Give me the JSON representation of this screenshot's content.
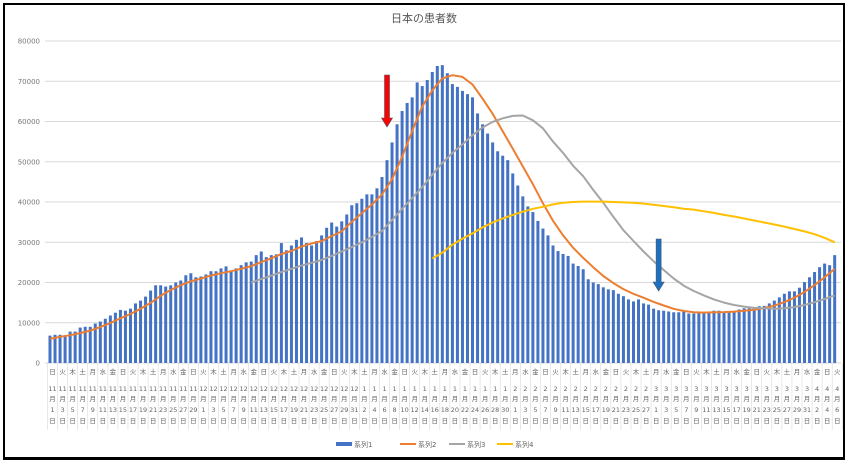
{
  "chart_data": {
    "type": "bar",
    "title": "日本の患者数",
    "ylim": [
      0,
      80000
    ],
    "yticks": [
      "0",
      "10000",
      "20000",
      "30000",
      "40000",
      "50000",
      "60000",
      "70000",
      "80000"
    ],
    "grid": true,
    "legend_placement": "bottom",
    "categories": [
      {
        "weekday": "日",
        "month": "11",
        "day": "1"
      },
      {
        "weekday": "火",
        "month": "11",
        "day": "3"
      },
      {
        "weekday": "木",
        "month": "11",
        "day": "5"
      },
      {
        "weekday": "土",
        "month": "11",
        "day": "7"
      },
      {
        "weekday": "月",
        "month": "11",
        "day": "9"
      },
      {
        "weekday": "水",
        "month": "11",
        "day": "11"
      },
      {
        "weekday": "金",
        "month": "11",
        "day": "13"
      },
      {
        "weekday": "日",
        "month": "11",
        "day": "15"
      },
      {
        "weekday": "火",
        "month": "11",
        "day": "17"
      },
      {
        "weekday": "木",
        "month": "11",
        "day": "19"
      },
      {
        "weekday": "土",
        "month": "11",
        "day": "21"
      },
      {
        "weekday": "月",
        "month": "11",
        "day": "23"
      },
      {
        "weekday": "水",
        "month": "11",
        "day": "25"
      },
      {
        "weekday": "金",
        "month": "11",
        "day": "27"
      },
      {
        "weekday": "日",
        "month": "11",
        "day": "29"
      },
      {
        "weekday": "火",
        "month": "12",
        "day": "1"
      },
      {
        "weekday": "木",
        "month": "12",
        "day": "3"
      },
      {
        "weekday": "土",
        "month": "12",
        "day": "5"
      },
      {
        "weekday": "月",
        "month": "12",
        "day": "7"
      },
      {
        "weekday": "水",
        "month": "12",
        "day": "9"
      },
      {
        "weekday": "金",
        "month": "12",
        "day": "11"
      },
      {
        "weekday": "日",
        "month": "12",
        "day": "13"
      },
      {
        "weekday": "火",
        "month": "12",
        "day": "15"
      },
      {
        "weekday": "木",
        "month": "12",
        "day": "17"
      },
      {
        "weekday": "土",
        "month": "12",
        "day": "19"
      },
      {
        "weekday": "月",
        "month": "12",
        "day": "21"
      },
      {
        "weekday": "水",
        "month": "12",
        "day": "23"
      },
      {
        "weekday": "金",
        "month": "12",
        "day": "25"
      },
      {
        "weekday": "日",
        "month": "12",
        "day": "27"
      },
      {
        "weekday": "火",
        "month": "12",
        "day": "29"
      },
      {
        "weekday": "木",
        "month": "12",
        "day": "31"
      },
      {
        "weekday": "土",
        "month": "1",
        "day": "2"
      },
      {
        "weekday": "月",
        "month": "1",
        "day": "4"
      },
      {
        "weekday": "水",
        "month": "1",
        "day": "6"
      },
      {
        "weekday": "金",
        "month": "1",
        "day": "8"
      },
      {
        "weekday": "日",
        "month": "1",
        "day": "10"
      },
      {
        "weekday": "火",
        "month": "1",
        "day": "12"
      },
      {
        "weekday": "木",
        "month": "1",
        "day": "14"
      },
      {
        "weekday": "土",
        "month": "1",
        "day": "16"
      },
      {
        "weekday": "月",
        "month": "1",
        "day": "18"
      },
      {
        "weekday": "水",
        "month": "1",
        "day": "20"
      },
      {
        "weekday": "金",
        "month": "1",
        "day": "22"
      },
      {
        "weekday": "日",
        "month": "1",
        "day": "24"
      },
      {
        "weekday": "火",
        "month": "1",
        "day": "26"
      },
      {
        "weekday": "木",
        "month": "1",
        "day": "28"
      },
      {
        "weekday": "土",
        "month": "1",
        "day": "30"
      },
      {
        "weekday": "月",
        "month": "2",
        "day": "1"
      },
      {
        "weekday": "水",
        "month": "2",
        "day": "3"
      },
      {
        "weekday": "金",
        "month": "2",
        "day": "5"
      },
      {
        "weekday": "日",
        "month": "2",
        "day": "7"
      },
      {
        "weekday": "火",
        "month": "2",
        "day": "9"
      },
      {
        "weekday": "木",
        "month": "2",
        "day": "11"
      },
      {
        "weekday": "土",
        "month": "2",
        "day": "13"
      },
      {
        "weekday": "月",
        "month": "2",
        "day": "15"
      },
      {
        "weekday": "水",
        "month": "2",
        "day": "17"
      },
      {
        "weekday": "金",
        "month": "2",
        "day": "19"
      },
      {
        "weekday": "日",
        "month": "2",
        "day": "21"
      },
      {
        "weekday": "火",
        "month": "2",
        "day": "23"
      },
      {
        "weekday": "木",
        "month": "2",
        "day": "25"
      },
      {
        "weekday": "土",
        "month": "2",
        "day": "27"
      },
      {
        "weekday": "月",
        "month": "3",
        "day": "1"
      },
      {
        "weekday": "水",
        "month": "3",
        "day": "3"
      },
      {
        "weekday": "金",
        "month": "3",
        "day": "5"
      },
      {
        "weekday": "日",
        "month": "3",
        "day": "7"
      },
      {
        "weekday": "火",
        "month": "3",
        "day": "9"
      },
      {
        "weekday": "木",
        "month": "3",
        "day": "11"
      },
      {
        "weekday": "土",
        "month": "3",
        "day": "13"
      },
      {
        "weekday": "月",
        "month": "3",
        "day": "15"
      },
      {
        "weekday": "水",
        "month": "3",
        "day": "17"
      },
      {
        "weekday": "金",
        "month": "3",
        "day": "19"
      },
      {
        "weekday": "日",
        "month": "3",
        "day": "21"
      },
      {
        "weekday": "火",
        "month": "3",
        "day": "23"
      },
      {
        "weekday": "木",
        "month": "3",
        "day": "25"
      },
      {
        "weekday": "土",
        "month": "3",
        "day": "27"
      },
      {
        "weekday": "月",
        "month": "3",
        "day": "29"
      },
      {
        "weekday": "水",
        "month": "3",
        "day": "31"
      },
      {
        "weekday": "金",
        "month": "4",
        "day": "2"
      },
      {
        "weekday": "日",
        "month": "4",
        "day": "4"
      },
      {
        "weekday": "火",
        "month": "4",
        "day": "6"
      }
    ],
    "month_suffix": "月",
    "day_suffix": "日",
    "bar_series": {
      "name": "系列1",
      "color": "#4472c4",
      "dates": [
        "11月1日",
        "11月2日",
        "11月3日",
        "11月4日",
        "11月5日",
        "11月6日",
        "11月7日",
        "11月8日",
        "11月9日",
        "11月10日",
        "11月11日",
        "11月12日",
        "11月13日",
        "11月14日",
        "11月15日",
        "11月16日",
        "11月17日",
        "11月18日",
        "11月19日",
        "11月20日",
        "11月21日",
        "11月22日",
        "11月23日",
        "11月24日",
        "11月25日",
        "11月26日",
        "11月27日",
        "11月28日",
        "11月29日",
        "11月30日",
        "12月1日",
        "12月2日",
        "12月3日",
        "12月4日",
        "12月5日",
        "12月6日",
        "12月7日",
        "12月8日",
        "12月9日",
        "12月10日",
        "12月11日",
        "12月12日",
        "12月13日",
        "12月14日",
        "12月15日",
        "12月16日",
        "12月17日",
        "12月18日",
        "12月19日",
        "12月20日",
        "12月21日",
        "12月22日",
        "12月23日",
        "12月24日",
        "12月25日",
        "12月26日",
        "12月27日",
        "12月28日",
        "12月29日",
        "12月30日",
        "12月31日",
        "1月1日",
        "1月2日",
        "1月3日",
        "1月4日",
        "1月5日",
        "1月6日",
        "1月7日",
        "1月8日",
        "1月9日",
        "1月10日",
        "1月11日",
        "1月12日",
        "1月13日",
        "1月14日",
        "1月15日",
        "1月16日",
        "1月17日",
        "1月18日",
        "1月19日",
        "1月20日",
        "1月21日",
        "1月22日",
        "1月23日",
        "1月24日",
        "1月25日",
        "1月26日",
        "1月27日",
        "1月28日",
        "1月29日",
        "1月30日",
        "1月31日",
        "2月1日",
        "2月2日",
        "2月3日",
        "2月4日",
        "2月5日",
        "2月6日",
        "2月7日",
        "2月8日",
        "2月9日",
        "2月10日",
        "2月11日",
        "2月12日",
        "2月13日",
        "2月14日",
        "2月15日",
        "2月16日",
        "2月17日",
        "2月18日",
        "2月19日",
        "2月20日",
        "2月21日",
        "2月22日",
        "2月23日",
        "2月24日",
        "2月25日",
        "2月26日",
        "2月27日",
        "2月28日",
        "3月1日",
        "3月2日",
        "3月3日",
        "3月4日",
        "3月5日",
        "3月6日",
        "3月7日",
        "3月8日",
        "3月9日",
        "3月10日",
        "3月11日",
        "3月12日",
        "3月13日",
        "3月14日",
        "3月15日",
        "3月16日",
        "3月17日",
        "3月18日",
        "3月19日",
        "3月20日",
        "3月21日",
        "3月22日",
        "3月23日",
        "3月24日",
        "3月25日",
        "3月26日",
        "3月27日",
        "3月28日",
        "3月29日",
        "3月30日",
        "3月31日",
        "4月1日",
        "4月2日",
        "4月3日",
        "4月4日",
        "4月5日",
        "4月6日"
      ],
      "values": [
        6800,
        7000,
        7000,
        6900,
        7800,
        7800,
        8800,
        9000,
        9000,
        9800,
        10300,
        11000,
        11800,
        12500,
        13200,
        13000,
        13500,
        14800,
        15500,
        16500,
        18000,
        19300,
        19300,
        19000,
        19300,
        20000,
        20500,
        21800,
        22300,
        21300,
        21500,
        22000,
        22800,
        22800,
        23500,
        24000,
        23000,
        23500,
        24300,
        25000,
        25200,
        26800,
        27700,
        26300,
        26800,
        27000,
        29800,
        28000,
        29200,
        30600,
        31200,
        29800,
        29200,
        30300,
        31700,
        33600,
        34900,
        33900,
        35200,
        36900,
        39200,
        39700,
        40800,
        41900,
        41900,
        43400,
        46200,
        50400,
        54800,
        59300,
        62600,
        64600,
        66000,
        69700,
        68800,
        70300,
        72300,
        73800,
        74000,
        72000,
        69300,
        68600,
        67600,
        66800,
        66000,
        62000,
        59300,
        57000,
        54800,
        52600,
        51500,
        50400,
        47100,
        44100,
        41400,
        38900,
        37500,
        35300,
        33400,
        31700,
        29200,
        27800,
        27100,
        26600,
        24700,
        24100,
        23300,
        20800,
        20000,
        19600,
        18800,
        18300,
        18100,
        17200,
        16600,
        15800,
        15300,
        15800,
        14800,
        14500,
        13500,
        13100,
        13000,
        12800,
        12600,
        12600,
        12800,
        12300,
        12300,
        12500,
        12600,
        12600,
        13000,
        13000,
        12500,
        12700,
        12900,
        13300,
        13600,
        13600,
        13900,
        14100,
        14200,
        14800,
        15500,
        16300,
        17200,
        17800,
        17800,
        18700,
        20100,
        21300,
        22600,
        23800,
        24700,
        24300,
        26800
      ]
    },
    "line_series": [
      {
        "name": "系列2",
        "color": "#ed7d31",
        "values": [
          6000,
          6500,
          6900,
          7440,
          8040,
          8930,
          9960,
          11090,
          12190,
          13470,
          14930,
          16700,
          18130,
          19340,
          20310,
          20960,
          21740,
          22310,
          22800,
          23410,
          24070,
          25070,
          26010,
          27090,
          27830,
          28940,
          29690,
          30290,
          31530,
          32690,
          35060,
          37230,
          39370,
          41870,
          45630,
          51230,
          57700,
          63690,
          67760,
          70700,
          71500,
          71090,
          69190,
          65660,
          61930,
          57600,
          53240,
          48840,
          44410,
          39670,
          35340,
          31710,
          28640,
          26110,
          23800,
          21610,
          19840,
          18370,
          17160,
          16230,
          15190,
          14290,
          13470,
          12910,
          12630,
          12530,
          12590,
          12640,
          12760,
          13000,
          13210,
          13660,
          14240,
          15140,
          16230,
          17630,
          19360,
          21290,
          23370
        ]
      },
      {
        "name": "系列3",
        "color": "#a5a5a5",
        "values": [
          null,
          null,
          null,
          null,
          null,
          null,
          null,
          null,
          null,
          null,
          null,
          null,
          null,
          null,
          null,
          null,
          null,
          null,
          null,
          null,
          20000,
          20900,
          21700,
          22600,
          23400,
          24200,
          24900,
          25600,
          26600,
          27700,
          28800,
          30000,
          31300,
          32800,
          35500,
          38300,
          41000,
          43700,
          46800,
          49700,
          52200,
          54300,
          56600,
          58500,
          59900,
          60800,
          61400,
          61500,
          60300,
          58300,
          55000,
          52200,
          49000,
          46400,
          43000,
          39800,
          36300,
          33000,
          30300,
          27700,
          25300,
          23100,
          21000,
          19200,
          17900,
          16800,
          15800,
          15000,
          14400,
          14000,
          13700,
          13600,
          13500,
          13600,
          13900,
          14400,
          15100,
          15900,
          16800
        ]
      },
      {
        "name": "系列4",
        "color": "#ffc000",
        "values": [
          null,
          null,
          null,
          null,
          null,
          null,
          null,
          null,
          null,
          null,
          null,
          null,
          null,
          null,
          null,
          null,
          null,
          null,
          null,
          null,
          null,
          null,
          null,
          null,
          null,
          null,
          null,
          null,
          null,
          null,
          null,
          null,
          null,
          null,
          null,
          null,
          null,
          null,
          26000,
          27400,
          29400,
          30900,
          32200,
          33700,
          34900,
          35900,
          36800,
          37600,
          38300,
          38800,
          39400,
          39800,
          40000,
          40100,
          40100,
          40100,
          40000,
          39900,
          39800,
          39600,
          39300,
          39000,
          38700,
          38300,
          38100,
          37700,
          37300,
          36800,
          36400,
          35900,
          35400,
          34900,
          34400,
          33900,
          33300,
          32700,
          32000,
          31100,
          30000
        ]
      }
    ],
    "annotations": [
      {
        "type": "arrow-down",
        "color": "#ff0000",
        "at_date": "1月7日"
      },
      {
        "type": "arrow-down",
        "color": "#1f6fc0",
        "at_date": "3月2日"
      }
    ]
  }
}
